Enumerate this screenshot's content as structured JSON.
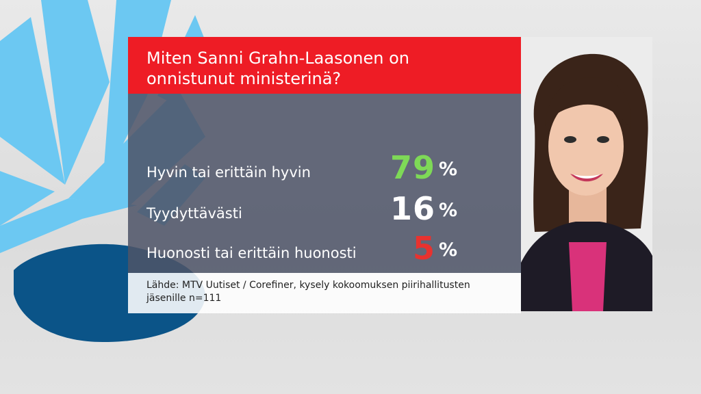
{
  "title": "Miten Sanni Grahn-Laasonen on onnistunut ministerinä?",
  "chart_data": {
    "type": "table",
    "title": "Miten Sanni Grahn-Laasonen on onnistunut ministerinä?",
    "categories": [
      "Hyvin tai erittäin hyvin",
      "Tyydyttävästi",
      "Huonosti tai erittäin huonosti"
    ],
    "values": [
      79,
      16,
      5
    ],
    "unit": "%"
  },
  "rows": [
    {
      "label": "Hyvin tai erittäin hyvin",
      "value": "79",
      "pct": "%",
      "color": "#7ed957"
    },
    {
      "label": "Tyydyttävästi",
      "value": "16",
      "pct": "%",
      "color": "#ffffff"
    },
    {
      "label": "Huonosti tai erittäin huonosti",
      "value": "5",
      "pct": "%",
      "color": "#e8322f"
    }
  ],
  "source": "Lähde: MTV Uutiset / Corefiner, kysely kokoomuksen piirihallitusten jäsenille n=111",
  "colors": {
    "title_bar": "#ee1c25",
    "stats_bg": "#4e5468",
    "positive": "#7ed957",
    "neutral": "#ffffff",
    "negative": "#e8322f",
    "logo_light_blue": "#6cc8f2",
    "logo_dark_blue": "#0b5488"
  },
  "portrait_icon": "person-photo"
}
